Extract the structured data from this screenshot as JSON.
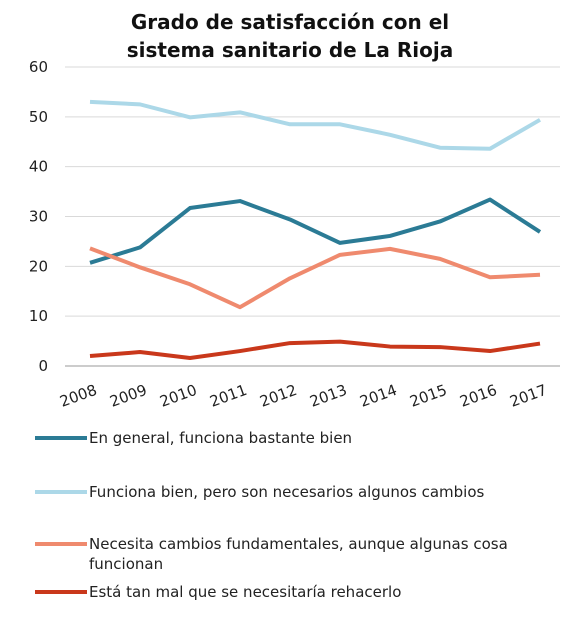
{
  "chart_data": {
    "type": "line",
    "title": "Grado de satisfacción con el sistema sanitario de La Rioja",
    "categories": [
      "2008",
      "2009",
      "2010",
      "2011",
      "2012",
      "2013",
      "2014",
      "2015",
      "2016",
      "2017"
    ],
    "series": [
      {
        "name": "En general, funciona bastante bien",
        "color": "#2b7b95",
        "values": [
          20.7,
          23.8,
          31.7,
          33.1,
          29.4,
          24.7,
          26.1,
          29.0,
          33.4,
          26.9
        ]
      },
      {
        "name": "Funciona bien, pero son necesarios algunos cambios",
        "color": "#acd8e8",
        "values": [
          53.0,
          52.5,
          49.9,
          50.9,
          48.5,
          48.5,
          46.4,
          43.8,
          43.6,
          49.4
        ]
      },
      {
        "name": "Necesita cambios fundamentales, aunque algunas cosa funcionan",
        "color": "#ef8a6e",
        "values": [
          23.6,
          19.8,
          16.4,
          11.8,
          17.6,
          22.3,
          23.5,
          21.5,
          17.8,
          18.3
        ]
      },
      {
        "name": "Está  tan mal que se necesitaría rehacerlo",
        "color": "#c9381b",
        "values": [
          2.0,
          2.8,
          1.6,
          3.0,
          4.6,
          4.9,
          3.9,
          3.8,
          3.0,
          4.5
        ]
      }
    ],
    "ylim": [
      0,
      60
    ],
    "yticks": [
      0,
      10,
      20,
      30,
      40,
      50,
      60
    ],
    "grid": true
  }
}
